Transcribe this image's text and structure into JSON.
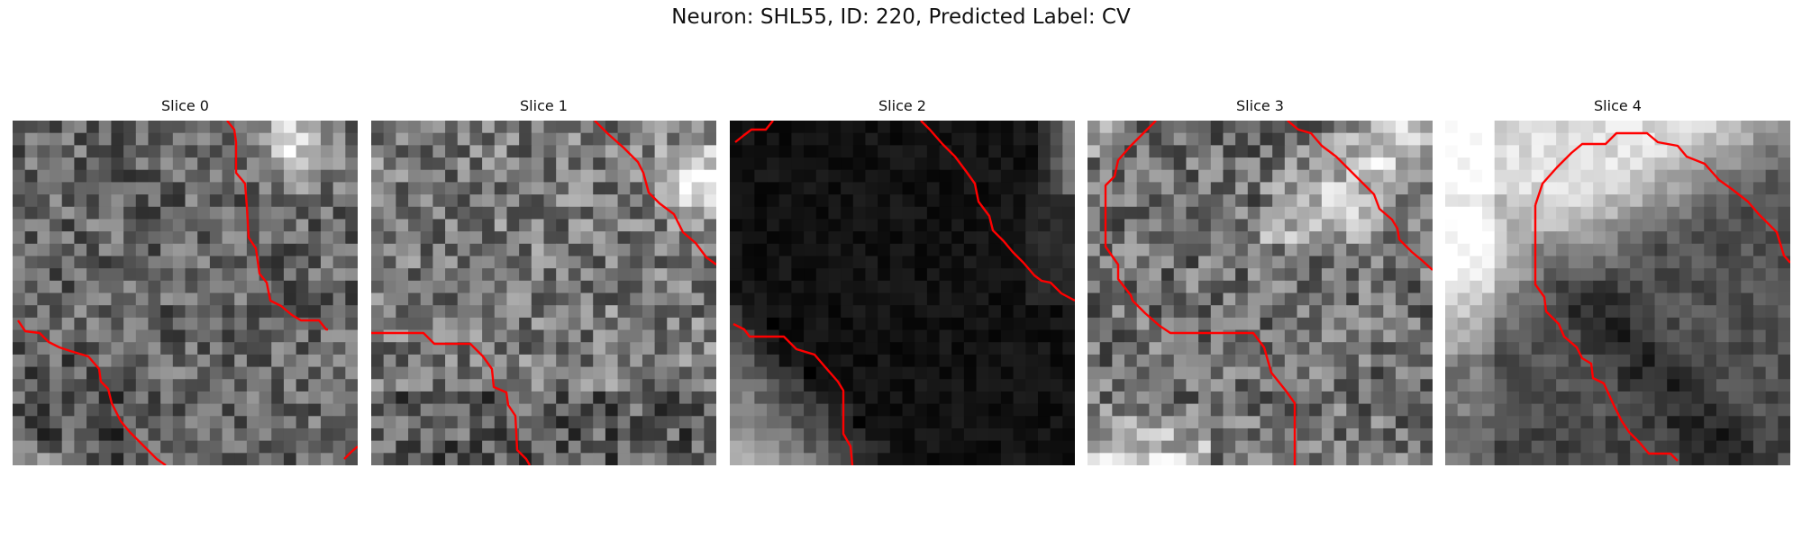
{
  "figure": {
    "title": "Neuron: SHL55, ID: 220, Predicted Label: CV"
  },
  "panels": [
    {
      "title": "Slice 0",
      "seed": 11,
      "style": "slice0"
    },
    {
      "title": "Slice 1",
      "seed": 23,
      "style": "slice1"
    },
    {
      "title": "Slice 2",
      "seed": 37,
      "style": "slice2"
    },
    {
      "title": "Slice 3",
      "seed": 49,
      "style": "slice3"
    },
    {
      "title": "Slice 4",
      "seed": 61,
      "style": "slice4"
    }
  ],
  "colors": {
    "contour": "#ff0000",
    "background": "#ffffff",
    "text": "#111111"
  }
}
